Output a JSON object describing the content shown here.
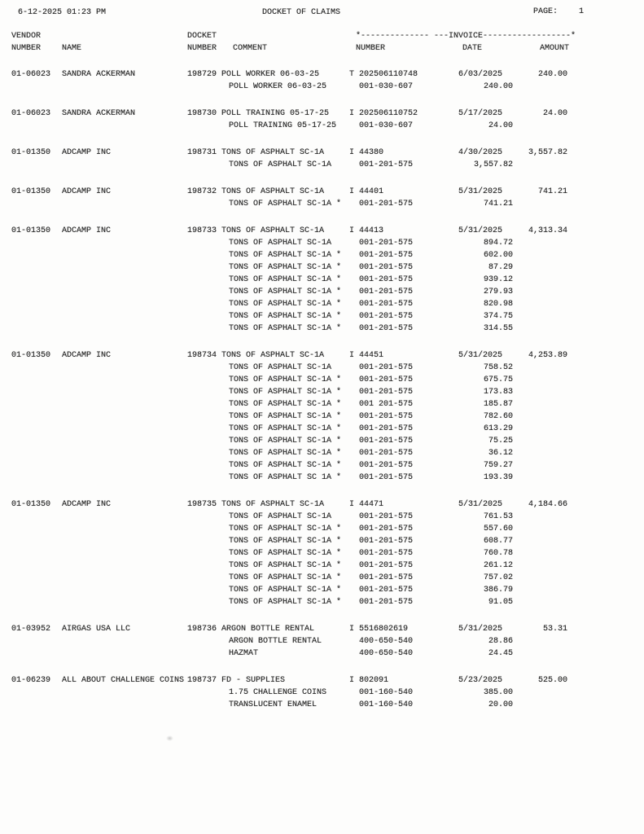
{
  "header": {
    "datetime": "6-12-2025 01:23 PM",
    "title": "DOCKET OF CLAIMS",
    "page_label": "PAGE:",
    "page_number": "1"
  },
  "columns": {
    "vendor_group": "VENDOR",
    "docket_group": "DOCKET",
    "invoice_rule": "*-------------- ---INVOICE------------------*",
    "vendor_number": "NUMBER",
    "name": "NAME",
    "docket_number": "NUMBER",
    "comment": "COMMENT",
    "invoice_number": "NUMBER",
    "invoice_date": "DATE",
    "invoice_amount": "AMOUNT"
  },
  "claims": [
    {
      "vendor_number": "01-06023",
      "vendor_name": "SANDRA ACKERMAN",
      "docket_number": "198729",
      "comment": "POLL WORKER 06-03-25",
      "invoice": "T 202506110748",
      "date": "6/03/2025",
      "amount": "240.00",
      "details": [
        {
          "comment": "POLL WORKER 06-03-25",
          "account": "001-030-607",
          "amount": "240.00"
        }
      ]
    },
    {
      "vendor_number": "01-06023",
      "vendor_name": "SANDRA ACKERMAN",
      "docket_number": "198730",
      "comment": "POLL TRAINING 05-17-25",
      "invoice": "I 202506110752",
      "date": "5/17/2025",
      "amount": "24.00",
      "details": [
        {
          "comment": "POLL TRAINING 05-17-25",
          "account": "001-030-607",
          "amount": "24.00"
        }
      ]
    },
    {
      "vendor_number": "01-01350",
      "vendor_name": "ADCAMP INC",
      "docket_number": "198731",
      "comment": "TONS OF ASPHALT SC-1A",
      "invoice": "I 44380",
      "date": "4/30/2025",
      "amount": "3,557.82",
      "details": [
        {
          "comment": "TONS OF ASPHALT SC-1A",
          "account": "001-201-575",
          "amount": "3,557.82"
        }
      ]
    },
    {
      "vendor_number": "01-01350",
      "vendor_name": "ADCAMP INC",
      "docket_number": "198732",
      "comment": "TONS OF ASPHALT SC-1A",
      "invoice": "I 44401",
      "date": "5/31/2025",
      "amount": "741.21",
      "details": [
        {
          "comment": "TONS OF ASPHALT SC-1A *",
          "account": "001-201-575",
          "amount": "741.21"
        }
      ]
    },
    {
      "vendor_number": "01-01350",
      "vendor_name": "ADCAMP INC",
      "docket_number": "198733",
      "comment": "TONS OF ASPHALT SC-1A",
      "invoice": "I 44413",
      "date": "5/31/2025",
      "amount": "4,313.34",
      "details": [
        {
          "comment": "TONS OF ASPHALT SC-1A",
          "account": "001-201-575",
          "amount": "894.72"
        },
        {
          "comment": "TONS OF ASPHALT SC-1A *",
          "account": "001-201-575",
          "amount": "602.00"
        },
        {
          "comment": "TONS OF ASPHALT SC-1A *",
          "account": "001-201-575",
          "amount": "87.29"
        },
        {
          "comment": "TONS OF ASPHALT SC-1A *",
          "account": "001-201-575",
          "amount": "939.12"
        },
        {
          "comment": "TONS OF ASPHALT SC-1A *",
          "account": "001-201-575",
          "amount": "279.93"
        },
        {
          "comment": "TONS OF ASPHALT SC-1A *",
          "account": "001-201-575",
          "amount": "820.98"
        },
        {
          "comment": "TONS OF ASPHALT SC-1A *",
          "account": "001-201-575",
          "amount": "374.75"
        },
        {
          "comment": "TONS OF ASPHALT SC-1A *",
          "account": "001-201-575",
          "amount": "314.55"
        }
      ]
    },
    {
      "vendor_number": "01-01350",
      "vendor_name": "ADCAMP INC",
      "docket_number": "198734",
      "comment": "TONS OF ASPHALT SC-1A",
      "invoice": "I 44451",
      "date": "5/31/2025",
      "amount": "4,253.89",
      "details": [
        {
          "comment": "TONS OF ASPHALT SC-1A",
          "account": "001-201-575",
          "amount": "758.52"
        },
        {
          "comment": "TONS OF ASPHALT SC-1A *",
          "account": "001-201-575",
          "amount": "675.75"
        },
        {
          "comment": "TONS OF ASPHALT SC-1A *",
          "account": "001-201-575",
          "amount": "173.83"
        },
        {
          "comment": "TONS OF ASPHALT SC-1A *",
          "account": "001 201-575",
          "amount": "185.87"
        },
        {
          "comment": "TONS OF ASPHALT SC-1A *",
          "account": "001-201-575",
          "amount": "782.60"
        },
        {
          "comment": "TONS OF ASPHALT SC-1A *",
          "account": "001-201-575",
          "amount": "613.29"
        },
        {
          "comment": "TONS OF ASPHALT SC-1A *",
          "account": "001-201-575",
          "amount": "75.25"
        },
        {
          "comment": "TONS OF ASPHALT SC-1A *",
          "account": "001-201-575",
          "amount": "36.12"
        },
        {
          "comment": "TONS OF ASPHALT SC-1A *",
          "account": "001-201-575",
          "amount": "759.27"
        },
        {
          "comment": "TONS OF ASPHALT SC 1A *",
          "account": "001-201-575",
          "amount": "193.39"
        }
      ]
    },
    {
      "vendor_number": "01-01350",
      "vendor_name": "ADCAMP INC",
      "docket_number": "198735",
      "comment": "TONS OF ASPHALT SC-1A",
      "invoice": "I 44471",
      "date": "5/31/2025",
      "amount": "4,184.66",
      "details": [
        {
          "comment": "TONS OF ASPHALT SC-1A",
          "account": "001-201-575",
          "amount": "761.53"
        },
        {
          "comment": "TONS OF ASPHALT SC-1A *",
          "account": "001-201-575",
          "amount": "557.60"
        },
        {
          "comment": "TONS OF ASPHALT SC-1A *",
          "account": "001-201-575",
          "amount": "608.77"
        },
        {
          "comment": "TONS OF ASPHALT SC-1A *",
          "account": "001-201-575",
          "amount": "760.78"
        },
        {
          "comment": "TONS OF ASPHALT SC-1A *",
          "account": "001-201-575",
          "amount": "261.12"
        },
        {
          "comment": "TONS OF ASPHALT SC-1A *",
          "account": "001-201-575",
          "amount": "757.02"
        },
        {
          "comment": "TONS OF ASPHALT SC-1A *",
          "account": "001-201-575",
          "amount": "386.79"
        },
        {
          "comment": "TONS OF ASPHALT SC-1A *",
          "account": "001-201-575",
          "amount": "91.05"
        }
      ]
    },
    {
      "vendor_number": "01-03952",
      "vendor_name": "AIRGAS USA LLC",
      "docket_number": "198736",
      "comment": "ARGON BOTTLE RENTAL",
      "invoice": "I 5516802619",
      "date": "5/31/2025",
      "amount": "53.31",
      "details": [
        {
          "comment": "ARGON BOTTLE RENTAL",
          "account": "400-650-540",
          "amount": "28.86"
        },
        {
          "comment": "HAZMAT",
          "account": "400-650-540",
          "amount": "24.45"
        }
      ]
    },
    {
      "vendor_number": "01-06239",
      "vendor_name": "ALL ABOUT CHALLENGE COINS",
      "docket_number": "198737",
      "comment": "FD - SUPPLIES",
      "invoice": "I 802091",
      "date": "5/23/2025",
      "amount": "525.00",
      "details": [
        {
          "comment": "1.75 CHALLENGE COINS",
          "account": "001-160-540",
          "amount": "385.00"
        },
        {
          "comment": "TRANSLUCENT ENAMEL",
          "account": "001-160-540",
          "amount": "20.00"
        }
      ]
    }
  ]
}
